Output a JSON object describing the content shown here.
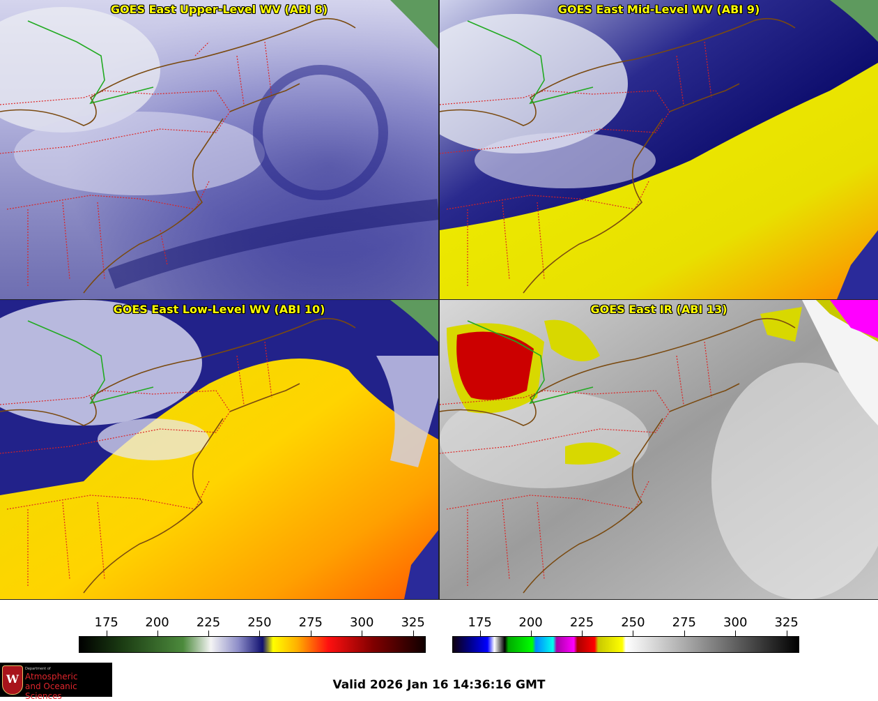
{
  "panels": [
    {
      "id": "p1",
      "title": "GOES East Upper-Level WV (ABI 8)",
      "scheme": "upper"
    },
    {
      "id": "p2",
      "title": "GOES East Mid-Level WV (ABI 9)",
      "scheme": "mid"
    },
    {
      "id": "p3",
      "title": "GOES East Low-Level WV (ABI 10)",
      "scheme": "low"
    },
    {
      "id": "p4",
      "title": "GOES East IR (ABI 13)",
      "scheme": "ir"
    }
  ],
  "colorbars": [
    {
      "name": "wv-colorbar",
      "ticks": [
        "175",
        "200",
        "225",
        "250",
        "275",
        "300",
        "325"
      ],
      "stops": [
        [
          "0",
          "#000000"
        ],
        [
          "0.12",
          "#1a3a12"
        ],
        [
          "0.3",
          "#4c8a3c"
        ],
        [
          "0.38",
          "#f4f4f4"
        ],
        [
          "0.46",
          "#8d8dc8"
        ],
        [
          "0.53",
          "#101070"
        ],
        [
          "0.56",
          "#ffff00"
        ],
        [
          "0.63",
          "#ffb000"
        ],
        [
          "0.72",
          "#ff1010"
        ],
        [
          "0.85",
          "#800000"
        ],
        [
          "1",
          "#100000"
        ]
      ]
    },
    {
      "name": "ir-colorbar",
      "ticks": [
        "175",
        "200",
        "225",
        "250",
        "275",
        "300",
        "325"
      ],
      "stops": [
        [
          "0",
          "#100010"
        ],
        [
          "0.05",
          "#00008a"
        ],
        [
          "0.1",
          "#0000ff"
        ],
        [
          "0.12",
          "#ffffff"
        ],
        [
          "0.15",
          "#000000"
        ],
        [
          "0.16",
          "#00aa00"
        ],
        [
          "0.23",
          "#00ff00"
        ],
        [
          "0.24",
          "#0088ff"
        ],
        [
          "0.29",
          "#00ffee"
        ],
        [
          "0.3",
          "#aa00aa"
        ],
        [
          "0.35",
          "#ff00ff"
        ],
        [
          "0.36",
          "#aa0000"
        ],
        [
          "0.41",
          "#ff0000"
        ],
        [
          "0.42",
          "#c8c800"
        ],
        [
          "0.49",
          "#ffff00"
        ],
        [
          "0.5",
          "#ffffff"
        ],
        [
          "0.7",
          "#9c9c9c"
        ],
        [
          "0.85",
          "#505050"
        ],
        [
          "1",
          "#000000"
        ]
      ]
    }
  ],
  "colors": {
    "title": "#ffff00",
    "state_borders": "#dd2222",
    "coastline": "#7a4a10",
    "canada_border": "#22aa22"
  },
  "logo": {
    "dept": "Department of",
    "line1": "Atmospheric",
    "line2": "and Oceanic Sciences"
  },
  "valid_text": "Valid 2026 Jan 16 14:36:16 GMT"
}
